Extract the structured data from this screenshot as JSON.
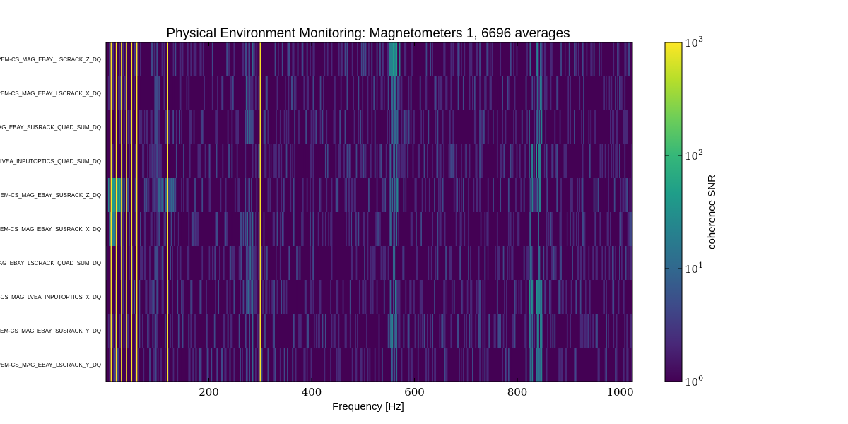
{
  "chart_data": {
    "type": "heatmap",
    "title": "Physical Environment Monitoring: Magnetometers 1, 6696 averages",
    "xlabel": "Frequency [Hz]",
    "colorbar_label": "coherence SNR",
    "xlim": [
      0,
      1024
    ],
    "x_ticks": [
      200,
      400,
      600,
      800,
      1000
    ],
    "color_scale": "log",
    "color_range": [
      1,
      1000
    ],
    "colorbar_ticks": [
      {
        "base": "10",
        "exp": "0",
        "value": 1
      },
      {
        "base": "10",
        "exp": "1",
        "value": 10
      },
      {
        "base": "10",
        "exp": "2",
        "value": 100
      },
      {
        "base": "10",
        "exp": "3",
        "value": 1000
      }
    ],
    "colormap": [
      "#440154",
      "#482878",
      "#3e4a89",
      "#31688e",
      "#26828e",
      "#1f9e89",
      "#35b779",
      "#6ece58",
      "#b5de2b",
      "#fde725"
    ],
    "rows": [
      "PEM-CS_MAG_EBAY_LSCRACK_Z_DQ",
      "PEM-CS_MAG_EBAY_LSCRACK_X_DQ",
      "AG_EBAY_SUSRACK_QUAD_SUM_DQ",
      "LVEA_INPUTOPTICS_QUAD_SUM_DQ",
      "PEM-CS_MAG_EBAY_SUSRACK_Z_DQ",
      "PEM-CS_MAG_EBAY_SUSRACK_X_DQ",
      "AG_EBAY_LSCRACK_QUAD_SUM_DQ",
      "M-CS_MAG_LVEA_INPUTOPTICS_X_DQ",
      "PEM-CS_MAG_EBAY_SUSRACK_Y_DQ",
      "PEM-CS_MAG_EBAY_LSCRACK_Y_DQ"
    ],
    "strong_lines_hz": [
      10,
      20,
      30,
      40,
      50,
      60,
      120,
      300
    ],
    "bright_bands": [
      {
        "from_hz": 552,
        "to_hz": 568,
        "snr": 12
      },
      {
        "from_hz": 822,
        "to_hz": 830,
        "snr": 15
      },
      {
        "from_hz": 836,
        "to_hz": 848,
        "snr": 18
      },
      {
        "from_hz": 270,
        "to_hz": 285,
        "snr": 6
      },
      {
        "from_hz": 90,
        "to_hz": 100,
        "snr": 5
      }
    ],
    "row_features": [
      {
        "row": 4,
        "from_hz": 0,
        "to_hz": 35,
        "snr": 40
      },
      {
        "row": 4,
        "from_hz": 100,
        "to_hz": 140,
        "snr": 8
      },
      {
        "row": 5,
        "from_hz": 0,
        "to_hz": 18,
        "snr": 25
      },
      {
        "row": 0,
        "from_hz": 548,
        "to_hz": 572,
        "snr": 30
      },
      {
        "row": 3,
        "from_hz": 836,
        "to_hz": 846,
        "snr": 35
      },
      {
        "row": 7,
        "from_hz": 822,
        "to_hz": 830,
        "snr": 35
      },
      {
        "row": 7,
        "from_hz": 836,
        "to_hz": 846,
        "snr": 28
      }
    ]
  }
}
